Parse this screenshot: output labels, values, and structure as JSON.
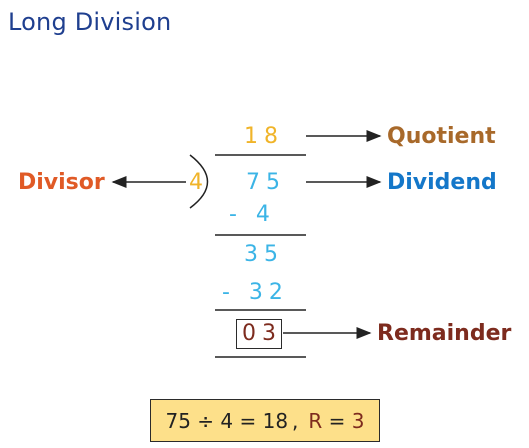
{
  "title": "Long Division",
  "quotient": "18",
  "divisor": "4",
  "dividend": "75",
  "step1_subtract": "- 4",
  "step2_value": "35",
  "step2_subtract": "- 32",
  "remainder": "03",
  "labels": {
    "quotient": "Quotient",
    "dividend": "Dividend",
    "divisor": "Divisor",
    "remainder": "Remainder"
  },
  "summary": {
    "equation": "75 ÷ 4 = 18",
    "separator": ",",
    "r_label": "R",
    "r_equals": " = ",
    "r_value": "3"
  },
  "colors": {
    "title": "#1f3f8f",
    "quotient": "#f0b429",
    "divisor_digit": "#f0b429",
    "steps": "#3bb4e6",
    "quotient_label": "#a8692a",
    "dividend_label": "#1477c9",
    "divisor_label": "#e05a26",
    "remainder_label": "#7d2b1e",
    "summary_bg": "#fde08a"
  }
}
